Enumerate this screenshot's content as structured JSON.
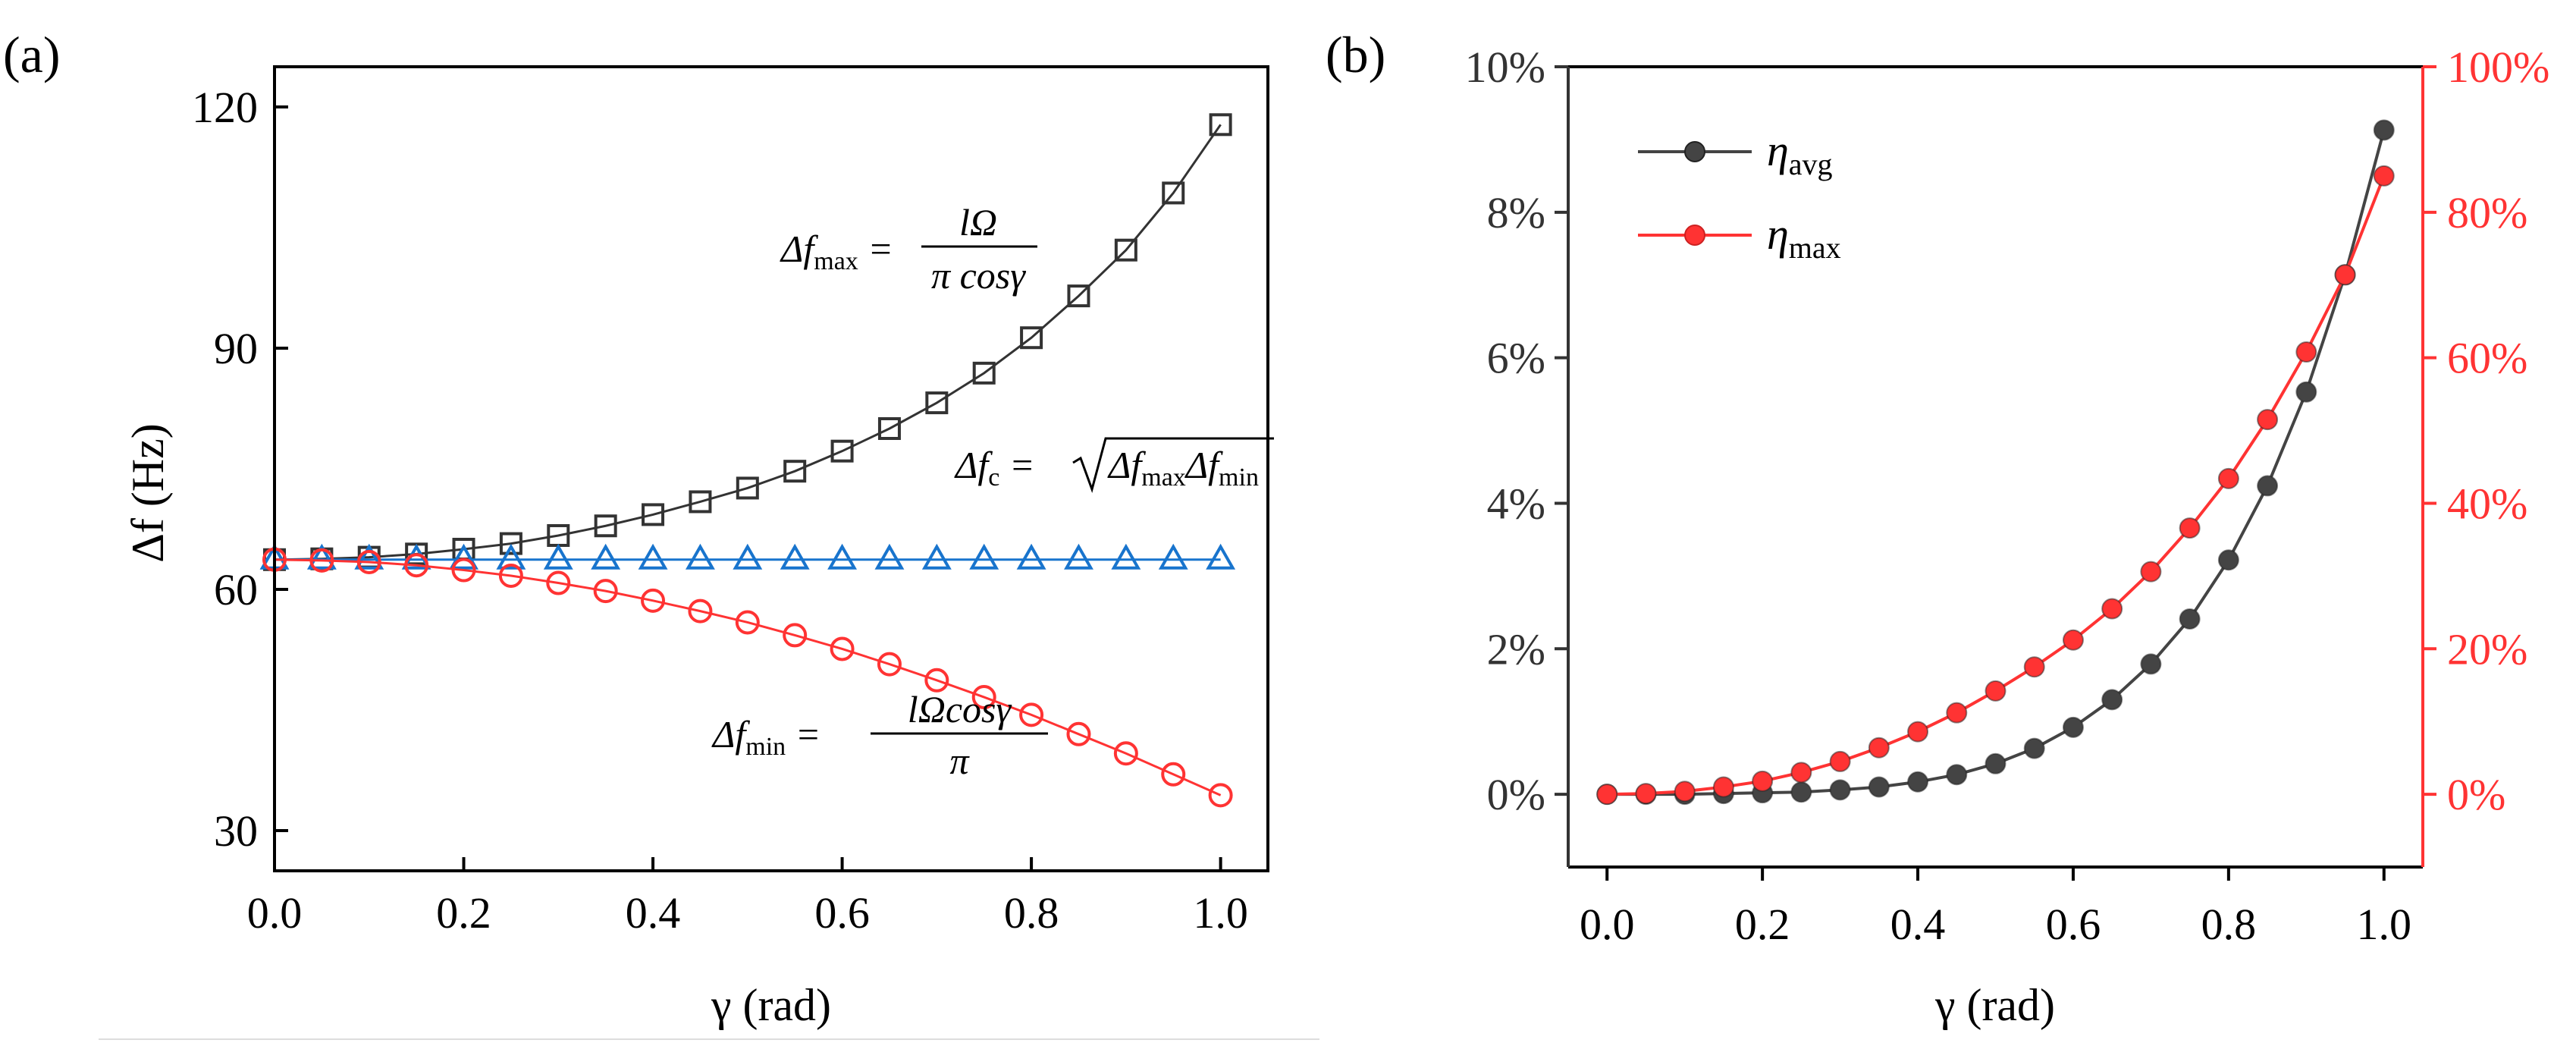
{
  "chart_data": [
    {
      "type": "line",
      "panel_label": "(a)",
      "xlabel": "γ (rad)",
      "ylabel": "Δf (Hz)",
      "xlim": [
        0,
        1.05
      ],
      "ylim": [
        25,
        125
      ],
      "xticks": [
        0.0,
        0.2,
        0.4,
        0.6,
        0.8,
        1.0
      ],
      "xtick_labels": [
        "0.0",
        "0.2",
        "0.4",
        "0.6",
        "0.8",
        "1.0"
      ],
      "yticks": [
        30,
        60,
        90,
        120
      ],
      "ytick_labels": [
        "30",
        "60",
        "90",
        "120"
      ],
      "x": [
        0,
        0.05,
        0.1,
        0.15,
        0.2,
        0.25,
        0.3,
        0.35,
        0.4,
        0.45,
        0.5,
        0.55,
        0.6,
        0.65,
        0.7,
        0.75,
        0.8,
        0.85,
        0.9,
        0.95,
        1.0
      ],
      "series": [
        {
          "key": "fmax",
          "marker": "square",
          "color": "#333333",
          "values": [
            63.7,
            63.8,
            64.0,
            64.4,
            65.0,
            65.7,
            66.7,
            67.9,
            69.3,
            70.9,
            72.6,
            74.7,
            77.2,
            80.0,
            83.2,
            86.9,
            91.3,
            96.5,
            102.2,
            109.3,
            117.8
          ],
          "equation": {
            "lhs": "Δf",
            "sub": "max",
            "num": "lΩ",
            "den": "π cosγ"
          }
        },
        {
          "key": "fc",
          "marker": "triangle",
          "color": "#1874CD",
          "values": [
            63.7,
            63.7,
            63.7,
            63.7,
            63.7,
            63.7,
            63.7,
            63.7,
            63.7,
            63.7,
            63.7,
            63.7,
            63.7,
            63.7,
            63.7,
            63.7,
            63.7,
            63.7,
            63.7,
            63.7,
            63.7
          ],
          "equation": {
            "lhs": "Δf",
            "sub": "c",
            "rhs": "Δf",
            "rhs_sub1": "max",
            "rhs_mid": "Δf",
            "rhs_sub2": "min"
          }
        },
        {
          "key": "fmin",
          "marker": "circle",
          "color": "#FF3333",
          "values": [
            63.7,
            63.6,
            63.4,
            63.0,
            62.4,
            61.7,
            60.8,
            59.8,
            58.6,
            57.3,
            55.9,
            54.3,
            52.6,
            50.7,
            48.7,
            46.6,
            44.4,
            42.0,
            39.6,
            37.0,
            34.4
          ],
          "equation": {
            "lhs": "Δf",
            "sub": "min",
            "num": "lΩcosγ",
            "den": "π"
          }
        }
      ]
    },
    {
      "type": "line",
      "panel_label": "(b)",
      "xlabel": "γ (rad)",
      "xlim": [
        -0.05,
        1.05
      ],
      "ylim_left": [
        -1,
        10
      ],
      "ylim_right": [
        -10,
        100
      ],
      "xticks": [
        0.0,
        0.2,
        0.4,
        0.6,
        0.8,
        1.0
      ],
      "xtick_labels": [
        "0.0",
        "0.2",
        "0.4",
        "0.6",
        "0.8",
        "1.0"
      ],
      "yticks_left": [
        0,
        2,
        4,
        6,
        8,
        10
      ],
      "ytick_labels_left": [
        "0%",
        "2%",
        "4%",
        "6%",
        "8%",
        "10%"
      ],
      "yticks_right": [
        0,
        20,
        40,
        60,
        80,
        100
      ],
      "ytick_labels_right": [
        "0%",
        "20%",
        "40%",
        "60%",
        "80%",
        "100%"
      ],
      "left_axis_color": "#333333",
      "right_axis_color": "#FF3333",
      "x": [
        0,
        0.05,
        0.1,
        0.15,
        0.2,
        0.25,
        0.3,
        0.35,
        0.4,
        0.45,
        0.5,
        0.55,
        0.6,
        0.65,
        0.7,
        0.75,
        0.8,
        0.85,
        0.9,
        0.95,
        1.0
      ],
      "legend_position": "top-left",
      "series": [
        {
          "key": "eta_avg",
          "name": "η",
          "name_sub": "avg",
          "axis": "left",
          "color": "#444444",
          "values": [
            0,
            0,
            0,
            0.01,
            0.02,
            0.03,
            0.06,
            0.1,
            0.17,
            0.27,
            0.42,
            0.63,
            0.92,
            1.3,
            1.79,
            2.41,
            3.22,
            4.24,
            5.53,
            7.14,
            9.13
          ]
        },
        {
          "key": "eta_max",
          "name": "η",
          "name_sub": "max",
          "axis": "right",
          "color": "#FF3333",
          "values": [
            0,
            0.1,
            0.4,
            1.0,
            1.8,
            3.0,
            4.5,
            6.4,
            8.6,
            11.2,
            14.2,
            17.5,
            21.2,
            25.5,
            30.6,
            36.6,
            43.4,
            51.5,
            60.8,
            71.4,
            85.0
          ]
        }
      ]
    }
  ]
}
